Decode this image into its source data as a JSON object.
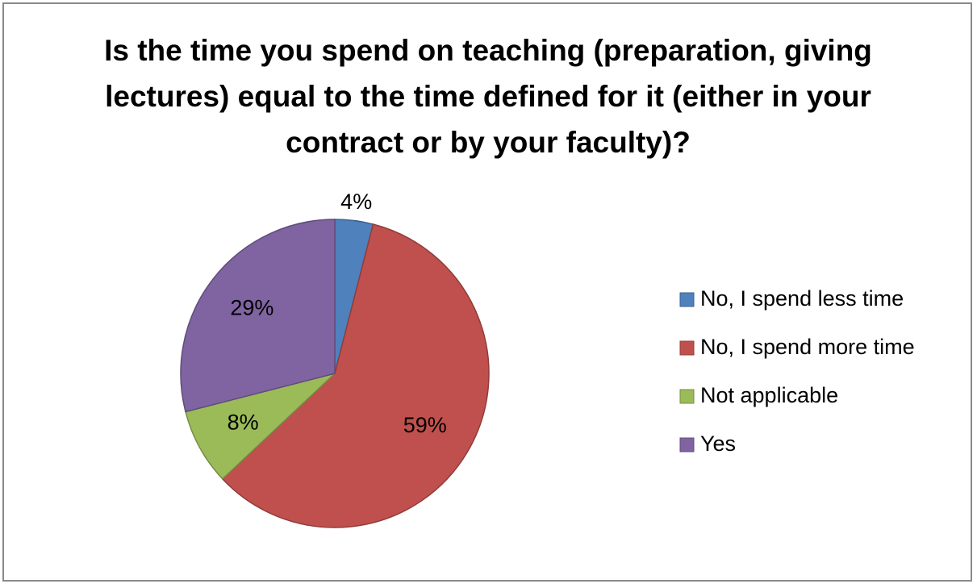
{
  "chart_data": {
    "type": "pie",
    "title": "Is the time you spend on teaching (preparation, giving lectures) equal to the time defined for it (either in your contract or by your faculty)?",
    "categories": [
      "No, I spend less time",
      "No, I spend more time",
      "Not applicable",
      "Yes"
    ],
    "values": [
      4,
      59,
      8,
      29
    ],
    "value_labels": [
      "4%",
      "59%",
      "8%",
      "29%"
    ],
    "colors": [
      "#4f81bd",
      "#c0504d",
      "#9bbb59",
      "#8064a2"
    ],
    "legend": "right"
  }
}
